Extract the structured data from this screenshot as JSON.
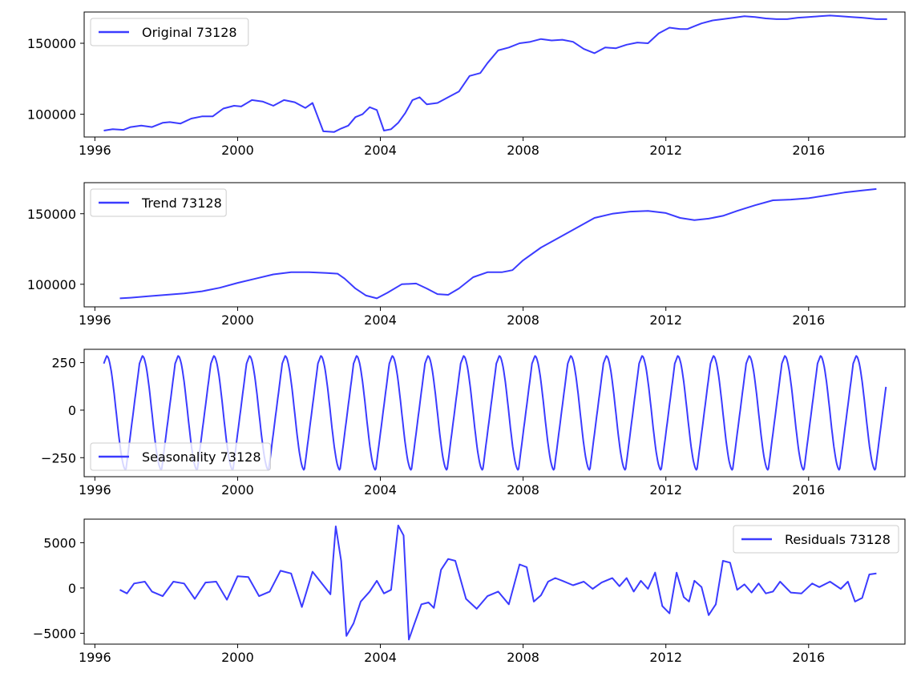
{
  "line_color": "#3b3bff",
  "chart_data": [
    {
      "type": "line",
      "legend": "Original 73128",
      "legend_loc": "upper left",
      "grid": false,
      "xlim": [
        1995.7,
        2018.7
      ],
      "ylim": [
        84000,
        172000
      ],
      "xticks": [
        1996,
        2000,
        2004,
        2008,
        2012,
        2016
      ],
      "xtick_labels": [
        "1996",
        "2000",
        "2004",
        "2008",
        "2012",
        "2016"
      ],
      "yticks": [
        100000,
        150000
      ],
      "ytick_labels": [
        "100000",
        "150000"
      ],
      "series": [
        {
          "x": [
            1996.25,
            1996.5,
            1996.8,
            1997.0,
            1997.3,
            1997.6,
            1997.9,
            1998.1,
            1998.4,
            1998.7,
            1999.0,
            1999.3,
            1999.6,
            1999.9,
            2000.1,
            2000.4,
            2000.7,
            2001.0,
            2001.3,
            2001.6,
            2001.9,
            2002.1,
            2002.4,
            2002.7,
            2002.9,
            2003.1,
            2003.3,
            2003.5,
            2003.7,
            2003.9,
            2004.1,
            2004.3,
            2004.5,
            2004.7,
            2004.9,
            2005.1,
            2005.3,
            2005.6,
            2005.9,
            2006.2,
            2006.5,
            2006.8,
            2007.0,
            2007.3,
            2007.6,
            2007.9,
            2008.2,
            2008.5,
            2008.8,
            2009.1,
            2009.4,
            2009.7,
            2010.0,
            2010.3,
            2010.6,
            2010.9,
            2011.2,
            2011.5,
            2011.8,
            2012.1,
            2012.4,
            2012.6,
            2012.8,
            2013.0,
            2013.3,
            2013.6,
            2013.9,
            2014.2,
            2014.5,
            2014.8,
            2015.1,
            2015.4,
            2015.7,
            2016.0,
            2016.3,
            2016.6,
            2016.9,
            2017.2,
            2017.5,
            2017.7,
            2017.9,
            2018.2
          ],
          "y": [
            88500,
            89500,
            89000,
            91000,
            92000,
            91000,
            94000,
            94500,
            93500,
            97000,
            98500,
            98500,
            104000,
            106000,
            105500,
            110000,
            109000,
            106000,
            110000,
            108500,
            104500,
            108000,
            88000,
            87500,
            90000,
            92000,
            98000,
            100000,
            105000,
            103000,
            88500,
            89500,
            94000,
            101000,
            110000,
            112000,
            107000,
            108000,
            112000,
            116000,
            127000,
            129000,
            136000,
            145000,
            147000,
            150000,
            151000,
            153000,
            152000,
            152500,
            151000,
            146000,
            143000,
            147000,
            146500,
            149000,
            150500,
            150000,
            157000,
            161000,
            160000,
            160000,
            162000,
            164000,
            166000,
            167000,
            168000,
            169000,
            168500,
            167500,
            167000,
            167000,
            168000,
            168500,
            169000,
            169500,
            169000,
            168500,
            168000,
            167500,
            167000,
            167000
          ]
        }
      ]
    },
    {
      "type": "line",
      "legend": "Trend 73128",
      "legend_loc": "upper left",
      "grid": false,
      "xlim": [
        1995.7,
        2018.7
      ],
      "ylim": [
        84000,
        172000
      ],
      "xticks": [
        1996,
        2000,
        2004,
        2008,
        2012,
        2016
      ],
      "xtick_labels": [
        "1996",
        "2000",
        "2004",
        "2008",
        "2012",
        "2016"
      ],
      "yticks": [
        100000,
        150000
      ],
      "ytick_labels": [
        "100000",
        "150000"
      ],
      "series": [
        {
          "x": [
            1996.7,
            1997.0,
            1997.5,
            1998.0,
            1998.5,
            1999.0,
            1999.5,
            2000.0,
            2000.5,
            2001.0,
            2001.5,
            2002.0,
            2002.5,
            2002.8,
            2003.0,
            2003.3,
            2003.6,
            2003.9,
            2004.2,
            2004.6,
            2005.0,
            2005.3,
            2005.6,
            2005.9,
            2006.2,
            2006.6,
            2007.0,
            2007.4,
            2007.7,
            2008.0,
            2008.5,
            2009.0,
            2009.5,
            2010.0,
            2010.5,
            2011.0,
            2011.5,
            2012.0,
            2012.4,
            2012.8,
            2013.2,
            2013.6,
            2014.0,
            2014.5,
            2015.0,
            2015.5,
            2016.0,
            2016.5,
            2017.0,
            2017.5,
            2017.9
          ],
          "y": [
            90000,
            90500,
            91500,
            92500,
            93500,
            95000,
            97500,
            101000,
            104000,
            107000,
            108500,
            108500,
            108000,
            107500,
            104000,
            97000,
            92000,
            90000,
            94000,
            100000,
            100500,
            97000,
            93000,
            92500,
            97000,
            105000,
            108500,
            108500,
            110000,
            117000,
            126000,
            133000,
            140000,
            147000,
            150000,
            151500,
            152000,
            150500,
            147000,
            145500,
            146500,
            148500,
            152000,
            156000,
            159500,
            160000,
            161000,
            163000,
            165000,
            166500,
            167500
          ]
        }
      ]
    },
    {
      "type": "line",
      "legend": "Seasonality 73128",
      "legend_loc": "lower left",
      "grid": false,
      "xlim": [
        1995.7,
        2018.7
      ],
      "ylim": [
        -350,
        320
      ],
      "xticks": [
        1996,
        2000,
        2004,
        2008,
        2012,
        2016
      ],
      "xtick_labels": [
        "1996",
        "2000",
        "2004",
        "2008",
        "2012",
        "2016"
      ],
      "yticks": [
        -250,
        0,
        250
      ],
      "ytick_labels": [
        "−250",
        "0",
        "250"
      ],
      "seasonal_pattern": {
        "start": 1996.25,
        "end": 2018.17,
        "period_years": 1.0,
        "peak_offset": 0.08,
        "trough_offset": 0.62,
        "peak": 285,
        "trough": -315,
        "start_value": 245
      }
    },
    {
      "type": "line",
      "legend": "Residuals 73128",
      "legend_loc": "upper right",
      "grid": false,
      "xlim": [
        1995.7,
        2018.7
      ],
      "ylim": [
        -6200,
        7600
      ],
      "xticks": [
        1996,
        2000,
        2004,
        2008,
        2012,
        2016
      ],
      "xtick_labels": [
        "1996",
        "2000",
        "2004",
        "2008",
        "2012",
        "2016"
      ],
      "yticks": [
        -5000,
        0,
        5000
      ],
      "ytick_labels": [
        "−5000",
        "0",
        "5000"
      ],
      "series": [
        {
          "x": [
            1996.7,
            1996.9,
            1997.1,
            1997.4,
            1997.6,
            1997.9,
            1998.2,
            1998.5,
            1998.8,
            1999.1,
            1999.4,
            1999.7,
            2000.0,
            2000.3,
            2000.6,
            2000.9,
            2001.2,
            2001.5,
            2001.8,
            2002.1,
            2002.4,
            2002.6,
            2002.75,
            2002.9,
            2003.05,
            2003.25,
            2003.45,
            2003.7,
            2003.9,
            2004.1,
            2004.3,
            2004.5,
            2004.65,
            2004.8,
            2004.95,
            2005.15,
            2005.35,
            2005.5,
            2005.7,
            2005.9,
            2006.1,
            2006.4,
            2006.7,
            2007.0,
            2007.3,
            2007.6,
            2007.9,
            2008.1,
            2008.3,
            2008.5,
            2008.7,
            2008.9,
            2009.1,
            2009.4,
            2009.7,
            2009.95,
            2010.2,
            2010.5,
            2010.7,
            2010.9,
            2011.1,
            2011.3,
            2011.5,
            2011.7,
            2011.9,
            2012.1,
            2012.3,
            2012.5,
            2012.65,
            2012.8,
            2013.0,
            2013.2,
            2013.4,
            2013.6,
            2013.8,
            2014.0,
            2014.2,
            2014.4,
            2014.6,
            2014.8,
            2015.0,
            2015.2,
            2015.5,
            2015.8,
            2016.1,
            2016.3,
            2016.6,
            2016.9,
            2017.1,
            2017.3,
            2017.5,
            2017.7,
            2017.9
          ],
          "y": [
            -200,
            -600,
            500,
            700,
            -400,
            -900,
            700,
            500,
            -1200,
            600,
            700,
            -1300,
            1300,
            1200,
            -900,
            -400,
            1900,
            1600,
            -2100,
            1800,
            300,
            -700,
            6800,
            3000,
            -5300,
            -3900,
            -1500,
            -400,
            800,
            -600,
            -200,
            6900,
            5800,
            -5700,
            -4000,
            -1800,
            -1600,
            -2200,
            2000,
            3200,
            3000,
            -1200,
            -2300,
            -900,
            -400,
            -1800,
            2600,
            2300,
            -1500,
            -800,
            700,
            1100,
            800,
            300,
            700,
            -100,
            600,
            1100,
            200,
            1100,
            -400,
            800,
            -100,
            1700,
            -2000,
            -2800,
            1700,
            -1000,
            -1500,
            800,
            100,
            -3000,
            -1800,
            3000,
            2800,
            -200,
            400,
            -500,
            500,
            -600,
            -400,
            700,
            -500,
            -600,
            500,
            100,
            700,
            -100,
            700,
            -1500,
            -1100,
            1500,
            1600
          ]
        }
      ]
    }
  ]
}
